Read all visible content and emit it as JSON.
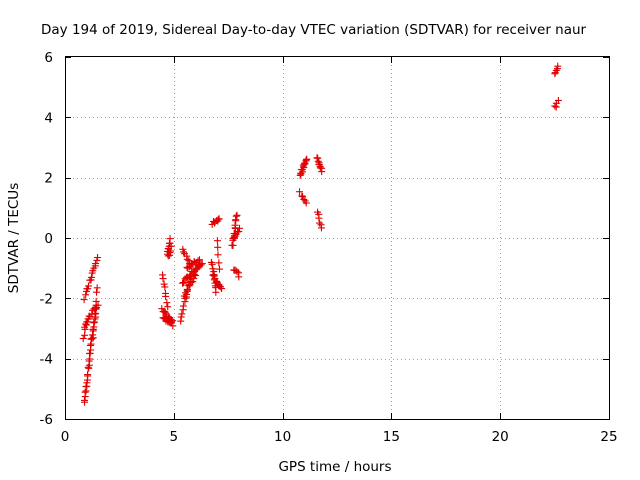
{
  "chart_data": {
    "type": "scatter",
    "title": "Day 194 of 2019, Sidereal Day-to-day VTEC variation (SDTVAR) for receiver naur",
    "xlabel": "GPS time / hours",
    "ylabel": "SDTVAR / TECUs",
    "xlim": [
      0,
      25
    ],
    "ylim": [
      -6,
      6
    ],
    "xticks": [
      0,
      5,
      10,
      15,
      20,
      25
    ],
    "yticks": [
      -6,
      -4,
      -2,
      0,
      2,
      4,
      6
    ],
    "xtick_labels": [
      "0",
      "5",
      "10",
      "15",
      "20",
      "25"
    ],
    "ytick_labels": [
      "-6",
      "-4",
      "-2",
      "0",
      "2",
      "4",
      "6"
    ],
    "grid": true,
    "marker": "+",
    "color": "#e00000",
    "segments": [
      {
        "x0": 0.9,
        "y0": -5.45,
        "x1": 1.22,
        "y1": -3.4,
        "n": 22
      },
      {
        "x0": 1.22,
        "y0": -3.4,
        "x1": 1.45,
        "y1": -2.3,
        "n": 12
      },
      {
        "x0": 0.85,
        "y0": -3.3,
        "x1": 1.05,
        "y1": -2.7,
        "n": 6
      },
      {
        "x0": 0.9,
        "y0": -2.9,
        "x1": 1.5,
        "y1": -2.2,
        "n": 12
      },
      {
        "x0": 0.9,
        "y0": -2.0,
        "x1": 1.5,
        "y1": -0.6,
        "n": 16
      },
      {
        "x0": 1.3,
        "y0": -3.3,
        "x1": 1.5,
        "y1": -1.6,
        "n": 8
      },
      {
        "x0": 4.5,
        "y0": -1.2,
        "x1": 4.7,
        "y1": -2.3,
        "n": 8
      },
      {
        "x0": 4.45,
        "y0": -2.4,
        "x1": 4.95,
        "y1": -2.8,
        "n": 14
      },
      {
        "x0": 4.5,
        "y0": -2.6,
        "x1": 4.95,
        "y1": -2.9,
        "n": 10
      },
      {
        "x0": 4.7,
        "y0": -0.5,
        "x1": 4.85,
        "y1": -0.05,
        "n": 8
      },
      {
        "x0": 4.75,
        "y0": -0.6,
        "x1": 4.9,
        "y1": -0.3,
        "n": 5
      },
      {
        "x0": 5.3,
        "y0": -2.7,
        "x1": 5.8,
        "y1": -1.3,
        "n": 14
      },
      {
        "x0": 5.4,
        "y0": -0.4,
        "x1": 5.8,
        "y1": -0.9,
        "n": 8
      },
      {
        "x0": 5.4,
        "y0": -1.5,
        "x1": 6.3,
        "y1": -0.8,
        "n": 22
      },
      {
        "x0": 5.5,
        "y0": -1.9,
        "x1": 6.0,
        "y1": -1.2,
        "n": 12
      },
      {
        "x0": 5.6,
        "y0": -1.0,
        "x1": 6.2,
        "y1": -0.7,
        "n": 10
      },
      {
        "x0": 6.75,
        "y0": -0.8,
        "x1": 6.95,
        "y1": -1.8,
        "n": 10
      },
      {
        "x0": 6.8,
        "y0": -1.2,
        "x1": 7.2,
        "y1": -1.7,
        "n": 12
      },
      {
        "x0": 6.75,
        "y0": 0.5,
        "x1": 7.1,
        "y1": 0.6,
        "n": 8
      },
      {
        "x0": 7.0,
        "y0": -0.1,
        "x1": 7.1,
        "y1": -1.0,
        "n": 5
      },
      {
        "x0": 7.7,
        "y0": -0.3,
        "x1": 7.9,
        "y1": 0.8,
        "n": 14
      },
      {
        "x0": 7.8,
        "y0": 0.0,
        "x1": 8.0,
        "y1": 0.3,
        "n": 6
      },
      {
        "x0": 7.75,
        "y0": -1.0,
        "x1": 8.0,
        "y1": -1.25,
        "n": 6
      },
      {
        "x0": 10.8,
        "y0": 2.1,
        "x1": 11.1,
        "y1": 2.6,
        "n": 14
      },
      {
        "x0": 10.8,
        "y0": 1.5,
        "x1": 11.1,
        "y1": 1.2,
        "n": 6
      },
      {
        "x0": 11.6,
        "y0": 2.7,
        "x1": 11.8,
        "y1": 2.2,
        "n": 10
      },
      {
        "x0": 11.6,
        "y0": 0.9,
        "x1": 11.8,
        "y1": 0.3,
        "n": 6
      },
      {
        "x0": 22.5,
        "y0": 5.4,
        "x1": 22.65,
        "y1": 5.65,
        "n": 5
      },
      {
        "x0": 22.5,
        "y0": 4.35,
        "x1": 22.65,
        "y1": 4.5,
        "n": 4
      }
    ]
  }
}
